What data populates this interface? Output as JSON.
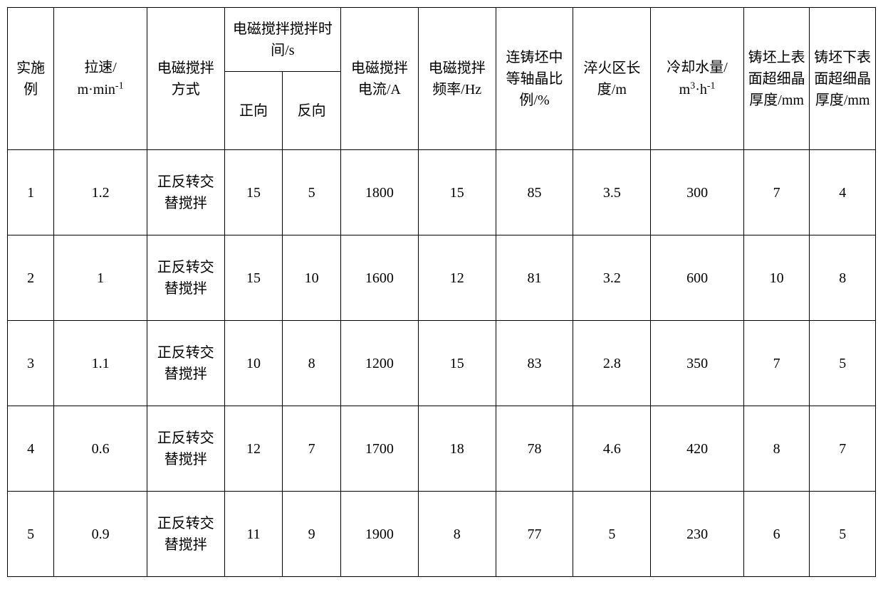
{
  "table": {
    "headers": {
      "col1": "实施例",
      "col2": "拉速/\nm·min⁻¹",
      "col3": "电磁搅拌方式",
      "col4_group": "电磁搅拌搅拌时间/s",
      "col4a": "正向",
      "col4b": "反向",
      "col5": "电磁搅拌电流/A",
      "col6": "电磁搅拌频率/Hz",
      "col7": "连铸坯中等轴晶比例/%",
      "col8": "淬火区长度/m",
      "col9": "冷却水量/\nm³·h⁻¹",
      "col10": "铸坯上表面超细晶厚度/mm",
      "col11": "铸坯下表面超细晶厚度/mm"
    },
    "rows": [
      {
        "id": "1",
        "speed": "1.2",
        "method": "正反转交替搅拌",
        "forward": "15",
        "reverse": "5",
        "current": "1800",
        "freq": "15",
        "ratio": "85",
        "quench": "3.5",
        "water": "300",
        "upper": "7",
        "lower": "4"
      },
      {
        "id": "2",
        "speed": "1",
        "method": "正反转交替搅拌",
        "forward": "15",
        "reverse": "10",
        "current": "1600",
        "freq": "12",
        "ratio": "81",
        "quench": "3.2",
        "water": "600",
        "upper": "10",
        "lower": "8"
      },
      {
        "id": "3",
        "speed": "1.1",
        "method": "正反转交替搅拌",
        "forward": "10",
        "reverse": "8",
        "current": "1200",
        "freq": "15",
        "ratio": "83",
        "quench": "2.8",
        "water": "350",
        "upper": "7",
        "lower": "5"
      },
      {
        "id": "4",
        "speed": "0.6",
        "method": "正反转交替搅拌",
        "forward": "12",
        "reverse": "7",
        "current": "1700",
        "freq": "18",
        "ratio": "78",
        "quench": "4.6",
        "water": "420",
        "upper": "8",
        "lower": "7"
      },
      {
        "id": "5",
        "speed": "0.9",
        "method": "正反转交替搅拌",
        "forward": "11",
        "reverse": "9",
        "current": "1900",
        "freq": "8",
        "ratio": "77",
        "quench": "5",
        "water": "230",
        "upper": "6",
        "lower": "5"
      }
    ],
    "column_widths": {
      "col1": "60px",
      "col2": "120px",
      "col3": "100px",
      "col4a": "75px",
      "col4b": "75px",
      "col5": "100px",
      "col6": "100px",
      "col7": "100px",
      "col8": "100px",
      "col9": "120px",
      "col10": "85px",
      "col11": "85px"
    },
    "styling": {
      "border_color": "#000000",
      "background_color": "#ffffff",
      "text_color": "#000000",
      "font_size": 20,
      "border_width": 1.5
    }
  }
}
